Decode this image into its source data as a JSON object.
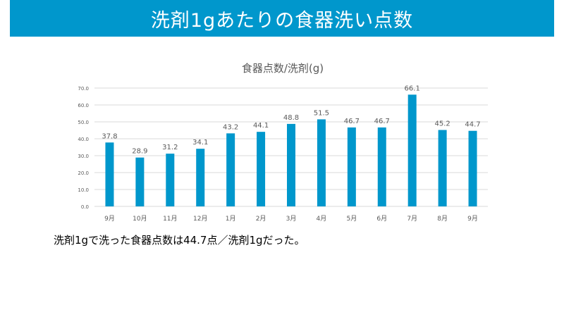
{
  "slide": {
    "title": "洗剤1gあたりの食器洗い点数",
    "summary": "洗剤1gで洗った食器点数は44.7点／洗剤1gだった。"
  },
  "colors": {
    "banner": "#0097cc",
    "bar": "#0097cc",
    "grid": "#d9d9d9",
    "axis_text": "#595959"
  },
  "chart_data": {
    "type": "bar",
    "title": "食器点数/洗剤(g)",
    "categories": [
      "9月",
      "10月",
      "11月",
      "12月",
      "1月",
      "2月",
      "3月",
      "4月",
      "5月",
      "6月",
      "7月",
      "8月",
      "9月"
    ],
    "values": [
      37.8,
      28.9,
      31.2,
      34.1,
      43.2,
      44.1,
      48.8,
      51.5,
      46.7,
      46.7,
      66.1,
      45.2,
      44.7
    ],
    "ylim": [
      0,
      70
    ],
    "yticks": [
      "0.0",
      "10.0",
      "20.0",
      "30.0",
      "40.0",
      "50.0",
      "60.0",
      "70.0"
    ],
    "xlabel": "",
    "ylabel": "",
    "grid": true,
    "legend": "none"
  }
}
